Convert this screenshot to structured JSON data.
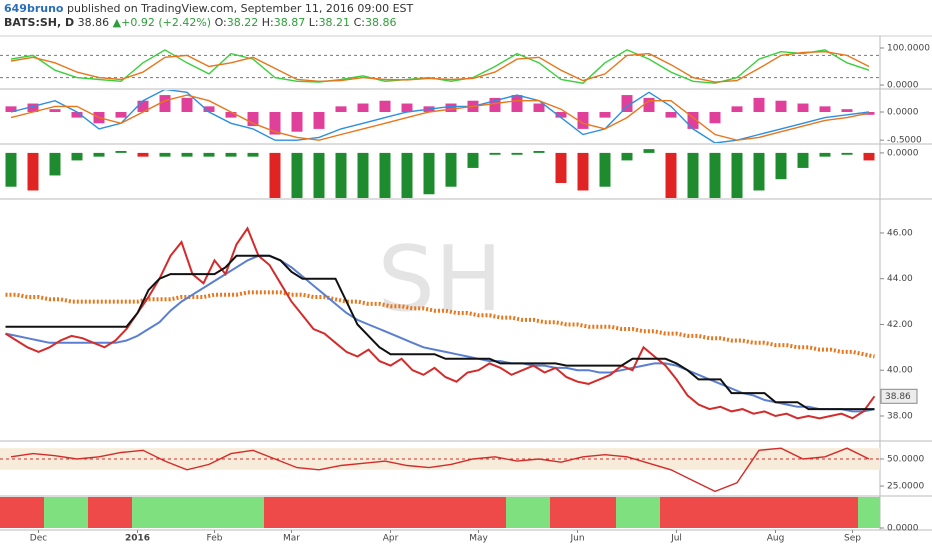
{
  "header": {
    "author": "649bruno",
    "published": "published on TradingView.com, September 11, 2016 09:00 EST",
    "symbol": "BATS:SH, D",
    "close": "38.86",
    "arrow": "▲",
    "change": "+0.92 (+2.42%)",
    "o_label": "O:",
    "open": "38.22",
    "h_label": "H:",
    "high": "38.87",
    "l_label": "L:",
    "low": "38.21",
    "c_label": "C:",
    "close_c": "38.86"
  },
  "watermark": "SH",
  "chart_data": [
    {
      "type": "line",
      "ylim": [
        -8,
        127
      ],
      "yticks": [
        {
          "value": 100,
          "label": "100.0000"
        },
        {
          "value": 0,
          "label": "0.0000"
        }
      ],
      "levels": [
        80,
        20
      ],
      "series": [
        {
          "color": "#3ccf3c",
          "values": [
            70,
            80,
            40,
            20,
            15,
            10,
            60,
            95,
            60,
            30,
            85,
            70,
            20,
            10,
            8,
            15,
            25,
            10,
            15,
            20,
            10,
            20,
            50,
            85,
            60,
            15,
            5,
            60,
            95,
            70,
            35,
            10,
            5,
            20,
            70,
            90,
            85,
            95,
            60,
            40
          ]
        },
        {
          "color": "#e8761c",
          "values": [
            65,
            75,
            60,
            35,
            20,
            15,
            35,
            75,
            80,
            50,
            60,
            75,
            45,
            15,
            10,
            12,
            20,
            15,
            14,
            18,
            15,
            18,
            35,
            70,
            75,
            40,
            12,
            30,
            80,
            85,
            55,
            20,
            8,
            12,
            45,
            80,
            88,
            90,
            80,
            50
          ]
        }
      ]
    },
    {
      "type": "combo",
      "ylim": [
        -0.55,
        0.39
      ],
      "yticks": [
        {
          "value": 0,
          "label": "0.0000"
        },
        {
          "value": -0.5,
          "label": "-0.5000"
        }
      ],
      "series": [
        {
          "type": "bar",
          "color": "#e0409a",
          "values": [
            0.1,
            0.15,
            0.05,
            -0.1,
            -0.2,
            -0.1,
            0.2,
            0.3,
            0.25,
            0.1,
            -0.1,
            -0.25,
            -0.4,
            -0.35,
            -0.3,
            0.1,
            0.15,
            0.2,
            0.15,
            0.1,
            0.15,
            0.2,
            0.25,
            0.3,
            0.15,
            -0.1,
            -0.3,
            -0.1,
            0.3,
            0.25,
            -0.1,
            -0.3,
            -0.2,
            0.1,
            0.25,
            0.2,
            0.15,
            0.1,
            0.05,
            -0.05
          ]
        },
        {
          "type": "line",
          "color": "#2d8fe0",
          "values": [
            0.0,
            0.1,
            0.2,
            0.0,
            -0.3,
            -0.2,
            0.2,
            0.4,
            0.35,
            0.0,
            -0.2,
            -0.3,
            -0.5,
            -0.5,
            -0.45,
            -0.3,
            -0.2,
            -0.1,
            0.0,
            0.05,
            0.1,
            0.1,
            0.2,
            0.3,
            0.2,
            -0.1,
            -0.4,
            -0.3,
            0.1,
            0.35,
            0.1,
            -0.3,
            -0.55,
            -0.5,
            -0.4,
            -0.3,
            -0.2,
            -0.1,
            -0.05,
            0.0
          ]
        },
        {
          "type": "line",
          "color": "#e8761c",
          "values": [
            -0.1,
            0.0,
            0.1,
            0.1,
            -0.1,
            -0.2,
            0.0,
            0.2,
            0.3,
            0.2,
            0.0,
            -0.2,
            -0.35,
            -0.45,
            -0.5,
            -0.4,
            -0.3,
            -0.2,
            -0.1,
            0.0,
            0.05,
            0.1,
            0.15,
            0.2,
            0.2,
            0.05,
            -0.2,
            -0.3,
            -0.1,
            0.2,
            0.2,
            -0.1,
            -0.4,
            -0.5,
            -0.45,
            -0.35,
            -0.25,
            -0.15,
            -0.1,
            -0.02
          ]
        }
      ]
    },
    {
      "type": "bar",
      "ylim": [
        -1.2,
        0.21
      ],
      "yticks": [
        {
          "value": 0,
          "label": "0.0000"
        }
      ],
      "series": [
        {
          "color_up": "#1e8c2e",
          "color_down": "#e02424",
          "values": [
            -0.9,
            -1.0,
            -0.6,
            -0.2,
            -0.1,
            0.05,
            -0.1,
            -0.1,
            -0.1,
            -0.1,
            -0.1,
            -0.1,
            -1.2,
            -1.2,
            -1.2,
            -1.2,
            -1.2,
            -1.2,
            -1.2,
            -1.1,
            -0.9,
            -0.4,
            -0.05,
            -0.05,
            0.05,
            -0.8,
            -1.0,
            -0.9,
            -0.2,
            0.1,
            -1.2,
            -1.2,
            -1.2,
            -1.2,
            -1.0,
            -0.7,
            -0.4,
            -0.1,
            -0.05,
            -0.2
          ]
        }
      ]
    },
    {
      "type": "line",
      "ylim": [
        36.95,
        47.44
      ],
      "yticks": [
        {
          "value": 46,
          "label": "46.00"
        },
        {
          "value": 44,
          "label": "44.00"
        },
        {
          "value": 42,
          "label": "42.00"
        },
        {
          "value": 40,
          "label": "40.00"
        },
        {
          "value": 38,
          "label": "38.00"
        }
      ],
      "categories": [
        null,
        null,
        null,
        "Dec",
        null,
        null,
        null,
        null,
        null,
        null,
        null,
        null,
        "2016",
        null,
        null,
        null,
        null,
        null,
        null,
        "Feb",
        null,
        null,
        null,
        null,
        null,
        null,
        "Mar",
        null,
        null,
        null,
        null,
        null,
        null,
        null,
        null,
        "Apr",
        null,
        null,
        null,
        null,
        null,
        null,
        null,
        "May",
        null,
        null,
        null,
        null,
        null,
        null,
        null,
        null,
        "Jun",
        null,
        null,
        null,
        null,
        null,
        null,
        null,
        null,
        "Jul",
        null,
        null,
        null,
        null,
        null,
        null,
        null,
        null,
        "Aug",
        null,
        null,
        null,
        null,
        null,
        null,
        "Sep",
        null,
        null
      ],
      "series": [
        {
          "color": "#e8761c",
          "dash": true,
          "values": [
            43.3,
            43.3,
            43.2,
            43.2,
            43.1,
            43.1,
            43.0,
            43.0,
            43.0,
            43.0,
            43.0,
            43.0,
            43.0,
            43.1,
            43.1,
            43.1,
            43.2,
            43.2,
            43.2,
            43.3,
            43.3,
            43.3,
            43.4,
            43.4,
            43.4,
            43.4,
            43.3,
            43.3,
            43.2,
            43.2,
            43.1,
            43.0,
            43.0,
            42.9,
            42.9,
            42.8,
            42.8,
            42.7,
            42.7,
            42.6,
            42.6,
            42.5,
            42.5,
            42.4,
            42.4,
            42.3,
            42.3,
            42.2,
            42.2,
            42.1,
            42.1,
            42.0,
            42.0,
            41.9,
            41.9,
            41.9,
            41.8,
            41.8,
            41.7,
            41.7,
            41.6,
            41.6,
            41.5,
            41.5,
            41.4,
            41.4,
            41.3,
            41.3,
            41.2,
            41.2,
            41.1,
            41.1,
            41.0,
            41.0,
            40.9,
            40.9,
            40.8,
            40.8,
            40.7,
            40.6
          ]
        },
        {
          "color": "#5b7fd0",
          "values": [
            41.6,
            41.5,
            41.4,
            41.3,
            41.2,
            41.2,
            41.2,
            41.2,
            41.2,
            41.2,
            41.2,
            41.3,
            41.5,
            41.8,
            42.1,
            42.6,
            43.0,
            43.3,
            43.6,
            43.9,
            44.2,
            44.5,
            44.8,
            45.0,
            45.0,
            44.8,
            44.5,
            44.1,
            43.7,
            43.3,
            42.9,
            42.5,
            42.2,
            42.0,
            41.8,
            41.6,
            41.4,
            41.2,
            41.0,
            40.9,
            40.8,
            40.7,
            40.6,
            40.5,
            40.4,
            40.4,
            40.3,
            40.3,
            40.2,
            40.2,
            40.1,
            40.1,
            40.0,
            40.0,
            39.9,
            39.9,
            40.0,
            40.1,
            40.2,
            40.3,
            40.3,
            40.2,
            40.0,
            39.8,
            39.6,
            39.4,
            39.2,
            39.0,
            38.9,
            38.7,
            38.6,
            38.5,
            38.4,
            38.4,
            38.3,
            38.3,
            38.3,
            38.2,
            38.2,
            38.3
          ]
        },
        {
          "color": "#d42b2b",
          "values": [
            41.6,
            41.3,
            41.0,
            40.8,
            41.0,
            41.3,
            41.5,
            41.4,
            41.2,
            41.0,
            41.3,
            41.8,
            42.5,
            43.2,
            44.0,
            45.0,
            45.6,
            44.2,
            43.8,
            44.8,
            44.2,
            45.5,
            46.2,
            45.0,
            44.6,
            43.8,
            43.0,
            42.4,
            41.8,
            41.6,
            41.2,
            40.8,
            40.6,
            40.9,
            40.4,
            40.2,
            40.5,
            40.0,
            39.8,
            40.1,
            39.7,
            39.5,
            39.9,
            40.0,
            40.3,
            40.1,
            39.8,
            40.0,
            40.2,
            39.9,
            40.1,
            39.7,
            39.5,
            39.4,
            39.6,
            39.8,
            40.2,
            40.0,
            41.0,
            40.6,
            40.2,
            39.6,
            38.9,
            38.5,
            38.3,
            38.4,
            38.2,
            38.3,
            38.1,
            38.2,
            38.0,
            38.1,
            37.9,
            38.0,
            37.9,
            38.0,
            38.1,
            37.9,
            38.2,
            38.86
          ]
        },
        {
          "color": "#111111",
          "values": [
            41.9,
            41.9,
            41.9,
            41.9,
            41.9,
            41.9,
            41.9,
            41.9,
            41.9,
            41.9,
            41.9,
            41.9,
            42.5,
            43.5,
            44.0,
            44.2,
            44.2,
            44.2,
            44.2,
            44.2,
            44.5,
            45.0,
            45.0,
            45.0,
            45.0,
            44.8,
            44.3,
            44.0,
            44.0,
            44.0,
            44.0,
            43.0,
            42.0,
            41.5,
            41.0,
            40.7,
            40.7,
            40.7,
            40.7,
            40.7,
            40.5,
            40.5,
            40.5,
            40.5,
            40.5,
            40.3,
            40.3,
            40.3,
            40.3,
            40.3,
            40.3,
            40.2,
            40.2,
            40.2,
            40.2,
            40.2,
            40.2,
            40.5,
            40.5,
            40.5,
            40.5,
            40.3,
            40.0,
            39.6,
            39.6,
            39.6,
            39.0,
            39.0,
            39.0,
            39.0,
            38.6,
            38.6,
            38.6,
            38.3,
            38.3,
            38.3,
            38.3,
            38.3,
            38.3,
            38.3
          ]
        }
      ]
    },
    {
      "type": "line",
      "ylim": [
        16.7,
        65.7
      ],
      "yticks": [
        {
          "value": 50,
          "label": "50.0000"
        },
        {
          "value": 25,
          "label": "25.0000"
        }
      ],
      "levels": [
        50
      ],
      "band": [
        40,
        60
      ],
      "series": [
        {
          "color": "#d42b2b",
          "values": [
            52,
            55,
            53,
            50,
            52,
            56,
            58,
            48,
            40,
            45,
            55,
            58,
            50,
            42,
            40,
            44,
            46,
            48,
            44,
            42,
            45,
            50,
            52,
            48,
            50,
            47,
            52,
            54,
            52,
            46,
            40,
            30,
            20,
            28,
            58,
            60,
            50,
            52,
            60,
            50
          ]
        }
      ]
    },
    {
      "type": "bar",
      "ylim": [
        0,
        1
      ],
      "yticks": [
        {
          "value": 0,
          "label": "0.0000"
        }
      ],
      "series": [
        {
          "values": [
            1,
            1,
            1,
            1,
            1,
            1,
            1,
            1,
            1,
            1,
            1,
            1,
            1,
            1,
            1,
            1,
            1,
            1,
            1,
            1,
            1,
            1,
            1,
            1,
            1,
            1,
            1,
            1,
            1,
            1,
            1,
            1,
            1,
            1,
            1,
            1,
            1,
            1,
            1,
            1
          ],
          "colors": [
            "#ef4a4a",
            "#ef4a4a",
            "#7ee07e",
            "#7ee07e",
            "#ef4a4a",
            "#ef4a4a",
            "#7ee07e",
            "#7ee07e",
            "#7ee07e",
            "#7ee07e",
            "#7ee07e",
            "#7ee07e",
            "#ef4a4a",
            "#ef4a4a",
            "#ef4a4a",
            "#ef4a4a",
            "#ef4a4a",
            "#ef4a4a",
            "#ef4a4a",
            "#ef4a4a",
            "#ef4a4a",
            "#ef4a4a",
            "#ef4a4a",
            "#7ee07e",
            "#7ee07e",
            "#ef4a4a",
            "#ef4a4a",
            "#ef4a4a",
            "#7ee07e",
            "#7ee07e",
            "#ef4a4a",
            "#ef4a4a",
            "#ef4a4a",
            "#ef4a4a",
            "#ef4a4a",
            "#ef4a4a",
            "#ef4a4a",
            "#ef4a4a",
            "#ef4a4a",
            "#7ee07e"
          ]
        }
      ]
    }
  ]
}
